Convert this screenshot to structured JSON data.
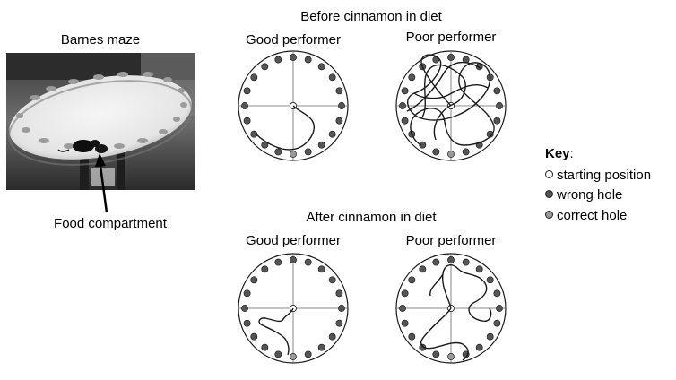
{
  "photo": {
    "title": "Barnes maze",
    "pointer_label": "Food compartment"
  },
  "sections": [
    {
      "title": "Before cinnamon in diet",
      "panels": [
        {
          "label": "Good performer"
        },
        {
          "label": "Poor performer"
        }
      ]
    },
    {
      "title": "After cinnamon in diet",
      "panels": [
        {
          "label": "Good performer"
        },
        {
          "label": "Poor performer"
        }
      ]
    }
  ],
  "key": {
    "title": "Key",
    "colon": ":",
    "items": [
      {
        "label": "starting position",
        "color": "#ffffff"
      },
      {
        "label": "wrong hole",
        "color": "#555555"
      },
      {
        "label": "correct hole",
        "color": "#9a9a9a"
      }
    ]
  },
  "colors": {
    "wrong_hole": "#555555",
    "correct_hole": "#9a9a9a",
    "start": "#ffffff",
    "stroke": "#1a1a1a"
  }
}
